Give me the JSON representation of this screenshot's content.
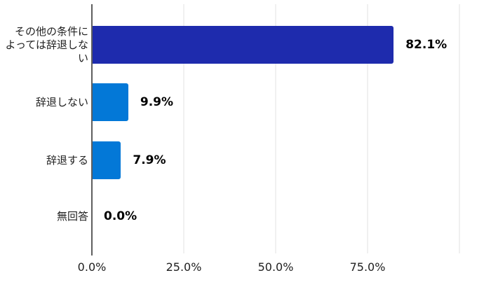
{
  "chart_data": {
    "type": "bar",
    "orientation": "horizontal",
    "title": "",
    "xlabel": "",
    "ylabel": "",
    "categories": [
      "その他の条件に\nよっては辞退しない",
      "辞退しない",
      "辞退する",
      "無回答"
    ],
    "values": [
      82.1,
      9.9,
      7.9,
      0.0
    ],
    "value_labels": [
      "82.1%",
      "9.9%",
      "7.9%",
      "0.0%"
    ],
    "bar_colors": [
      "#1E2BAD",
      "#0378D7",
      "#0378D7",
      "#0378D7"
    ],
    "xlim": [
      0,
      100
    ],
    "x_tick_values": [
      0,
      25,
      50,
      75
    ],
    "x_tick_labels": [
      "0.0%",
      "25.0%",
      "50.0%",
      "75.0%"
    ],
    "gridline_values": [
      0,
      25,
      50,
      75,
      100
    ],
    "grid": true,
    "legend": false,
    "colors": {
      "background": "#ffffff",
      "gridline": "#e0e0e0",
      "axis_line": "#5e5e5e",
      "value_label_text": "#000000",
      "category_label_text": "#212121"
    }
  }
}
